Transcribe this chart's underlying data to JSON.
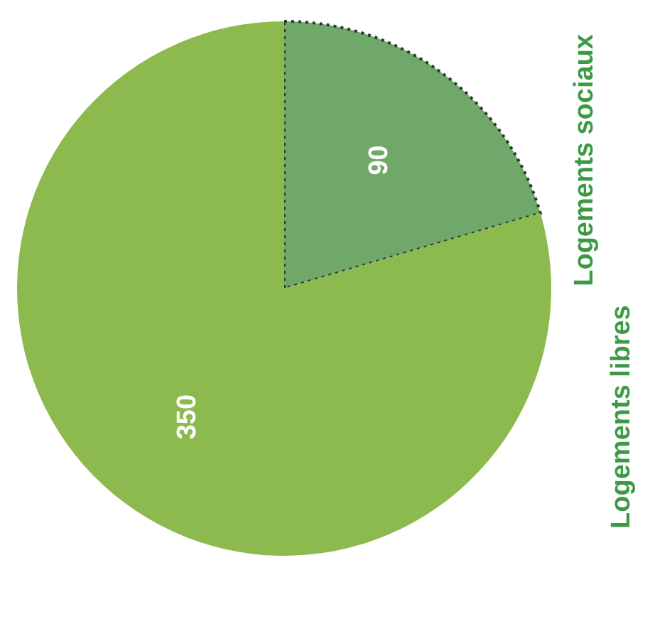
{
  "chart_data": {
    "type": "pie",
    "categories": [
      "Logements sociaux",
      "Logements libres"
    ],
    "values": [
      90,
      350
    ],
    "colors": [
      "#6fa868",
      "#8dba4f"
    ],
    "data_labels": true
  }
}
